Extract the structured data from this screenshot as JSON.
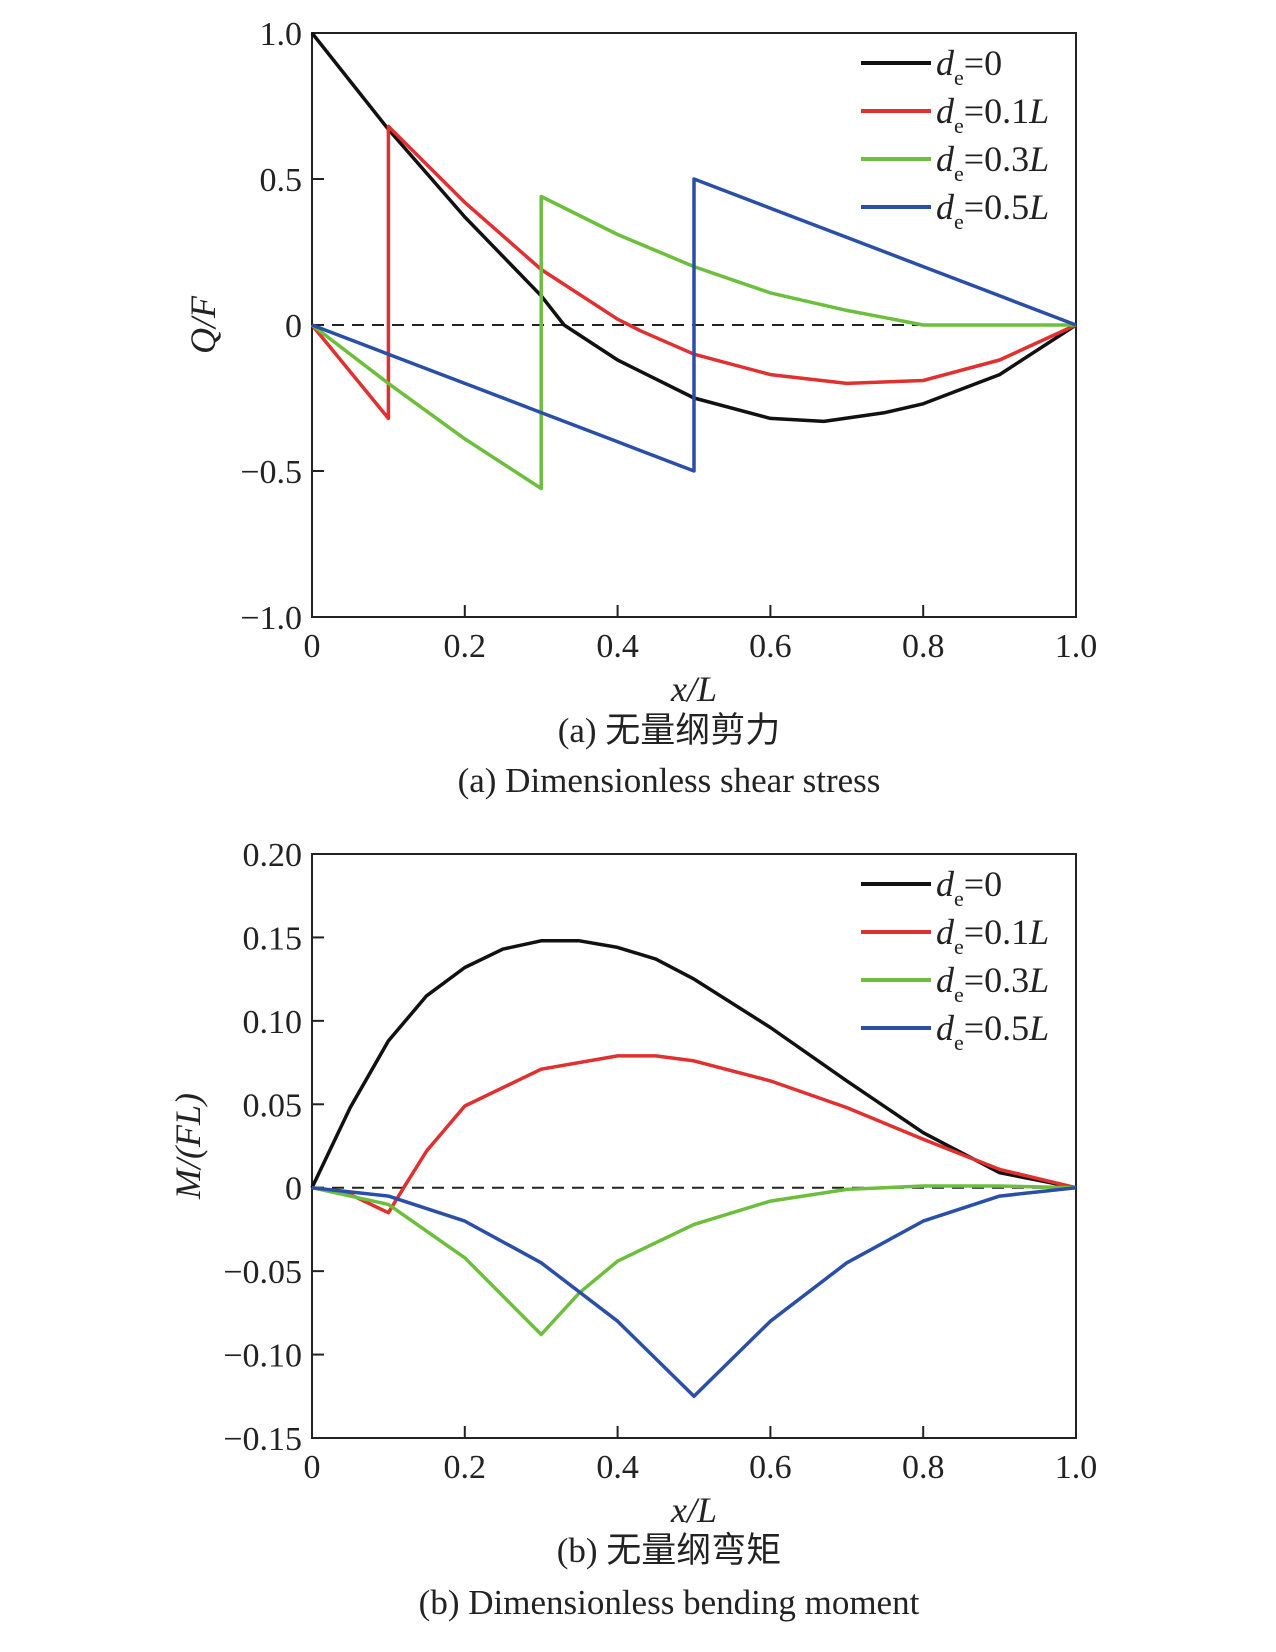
{
  "chart_data": [
    {
      "type": "line",
      "xlabel": "x/L",
      "ylabel": "Q/F",
      "xlim": [
        0,
        1.0
      ],
      "ylim": [
        -1.0,
        1.0
      ],
      "xticks": [
        "0",
        "0.2",
        "0.4",
        "0.6",
        "0.8",
        "1.0"
      ],
      "yticks": [
        "−1.0",
        "−0.5",
        "0",
        "0.5",
        "1.0"
      ],
      "legend_position": "top-right",
      "caption_cn": "(a) 无量纲剪力",
      "caption_en": "(a) Dimensionless shear stress",
      "reference_line": {
        "y": 0,
        "style": "dashed"
      },
      "series": [
        {
          "name": "de=0",
          "color": "#111111",
          "points": [
            [
              0,
              1.0
            ],
            [
              0.1,
              0.67
            ],
            [
              0.2,
              0.37
            ],
            [
              0.3,
              0.1
            ],
            [
              0.33,
              0.0
            ],
            [
              0.4,
              -0.12
            ],
            [
              0.5,
              -0.25
            ],
            [
              0.6,
              -0.32
            ],
            [
              0.67,
              -0.33
            ],
            [
              0.75,
              -0.3
            ],
            [
              0.8,
              -0.27
            ],
            [
              0.9,
              -0.17
            ],
            [
              1.0,
              0.0
            ]
          ]
        },
        {
          "name": "de=0.1L",
          "color": "#e03030",
          "points": [
            [
              0,
              0.0
            ],
            [
              0.1,
              -0.32
            ],
            [
              0.1,
              0.68
            ],
            [
              0.2,
              0.42
            ],
            [
              0.3,
              0.19
            ],
            [
              0.4,
              0.02
            ],
            [
              0.43,
              -0.02
            ],
            [
              0.5,
              -0.1
            ],
            [
              0.6,
              -0.17
            ],
            [
              0.7,
              -0.2
            ],
            [
              0.8,
              -0.19
            ],
            [
              0.9,
              -0.12
            ],
            [
              1.0,
              0.0
            ]
          ]
        },
        {
          "name": "de=0.3L",
          "color": "#6cbf3c",
          "points": [
            [
              0,
              0.0
            ],
            [
              0.1,
              -0.2
            ],
            [
              0.2,
              -0.39
            ],
            [
              0.3,
              -0.56
            ],
            [
              0.3,
              0.44
            ],
            [
              0.4,
              0.31
            ],
            [
              0.5,
              0.2
            ],
            [
              0.6,
              0.11
            ],
            [
              0.7,
              0.05
            ],
            [
              0.8,
              0.0
            ],
            [
              0.9,
              0.0
            ],
            [
              1.0,
              0.0
            ]
          ]
        },
        {
          "name": "de=0.5L",
          "color": "#2a4fa8",
          "points": [
            [
              0,
              0.0
            ],
            [
              0.1,
              -0.1
            ],
            [
              0.2,
              -0.2
            ],
            [
              0.3,
              -0.3
            ],
            [
              0.4,
              -0.4
            ],
            [
              0.5,
              -0.5
            ],
            [
              0.5,
              0.5
            ],
            [
              0.6,
              0.4
            ],
            [
              0.7,
              0.3
            ],
            [
              0.8,
              0.2
            ],
            [
              0.9,
              0.1
            ],
            [
              1.0,
              0.0
            ]
          ]
        }
      ]
    },
    {
      "type": "line",
      "xlabel": "x/L",
      "ylabel": "M/(FL)",
      "xlim": [
        0,
        1.0
      ],
      "ylim": [
        -0.15,
        0.2
      ],
      "xticks": [
        "0",
        "0.2",
        "0.4",
        "0.6",
        "0.8",
        "1.0"
      ],
      "yticks": [
        "−0.15",
        "−0.10",
        "−0.05",
        "0",
        "0.05",
        "0.10",
        "0.15",
        "0.20"
      ],
      "legend_position": "top-right",
      "caption_cn": "(b) 无量纲弯矩",
      "caption_en": "(b) Dimensionless bending moment",
      "reference_line": {
        "y": 0,
        "style": "dashed"
      },
      "series": [
        {
          "name": "de=0",
          "color": "#111111",
          "points": [
            [
              0,
              0.0
            ],
            [
              0.05,
              0.048
            ],
            [
              0.1,
              0.088
            ],
            [
              0.15,
              0.115
            ],
            [
              0.2,
              0.132
            ],
            [
              0.25,
              0.143
            ],
            [
              0.3,
              0.148
            ],
            [
              0.35,
              0.148
            ],
            [
              0.4,
              0.144
            ],
            [
              0.45,
              0.137
            ],
            [
              0.5,
              0.125
            ],
            [
              0.6,
              0.096
            ],
            [
              0.7,
              0.064
            ],
            [
              0.8,
              0.033
            ],
            [
              0.9,
              0.009
            ],
            [
              1.0,
              0.0
            ]
          ]
        },
        {
          "name": "de=0.1L",
          "color": "#e03030",
          "points": [
            [
              0,
              0.0
            ],
            [
              0.05,
              -0.004
            ],
            [
              0.1,
              -0.015
            ],
            [
              0.12,
              0.0
            ],
            [
              0.15,
              0.022
            ],
            [
              0.2,
              0.049
            ],
            [
              0.3,
              0.071
            ],
            [
              0.4,
              0.079
            ],
            [
              0.45,
              0.079
            ],
            [
              0.5,
              0.076
            ],
            [
              0.6,
              0.064
            ],
            [
              0.7,
              0.048
            ],
            [
              0.8,
              0.029
            ],
            [
              0.9,
              0.011
            ],
            [
              1.0,
              0.0
            ]
          ]
        },
        {
          "name": "de=0.3L",
          "color": "#6cbf3c",
          "points": [
            [
              0,
              0.0
            ],
            [
              0.1,
              -0.01
            ],
            [
              0.2,
              -0.042
            ],
            [
              0.3,
              -0.088
            ],
            [
              0.35,
              -0.063
            ],
            [
              0.4,
              -0.044
            ],
            [
              0.5,
              -0.022
            ],
            [
              0.6,
              -0.008
            ],
            [
              0.7,
              -0.001
            ],
            [
              0.8,
              0.001
            ],
            [
              0.9,
              0.001
            ],
            [
              1.0,
              0.0
            ]
          ]
        },
        {
          "name": "de=0.5L",
          "color": "#2a4fa8",
          "points": [
            [
              0,
              0.0
            ],
            [
              0.1,
              -0.005
            ],
            [
              0.2,
              -0.02
            ],
            [
              0.3,
              -0.045
            ],
            [
              0.4,
              -0.08
            ],
            [
              0.5,
              -0.125
            ],
            [
              0.6,
              -0.08
            ],
            [
              0.7,
              -0.045
            ],
            [
              0.8,
              -0.02
            ],
            [
              0.9,
              -0.005
            ],
            [
              1.0,
              0.0
            ]
          ]
        }
      ]
    }
  ]
}
